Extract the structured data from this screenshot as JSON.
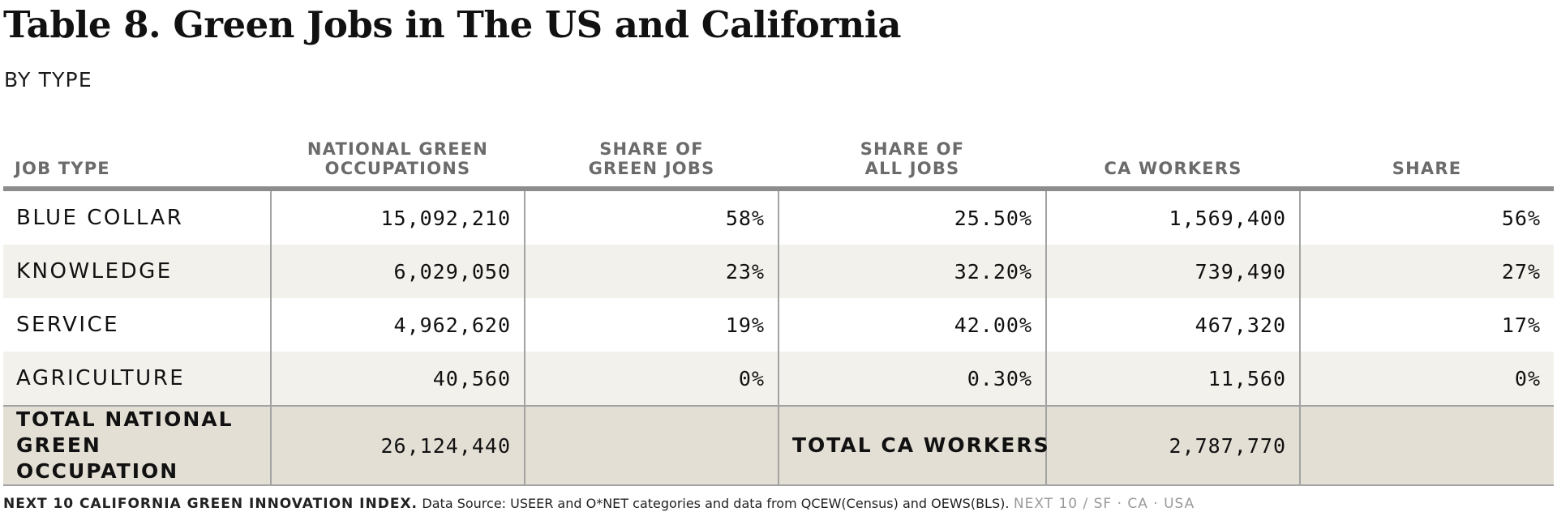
{
  "title": "Table 8. Green Jobs in The US and California",
  "subtitle": "BY TYPE",
  "table": {
    "headers": [
      [
        "JOB TYPE"
      ],
      [
        "NATIONAL GREEN",
        "OCCUPATIONS"
      ],
      [
        "SHARE OF",
        "GREEN JOBS"
      ],
      [
        "SHARE OF",
        "ALL JOBS"
      ],
      [
        "CA WORKERS"
      ],
      [
        "SHARE"
      ]
    ],
    "rows": [
      {
        "job_type": "BLUE COLLAR",
        "national": "15,092,210",
        "share_green": "58%",
        "share_all": "25.50%",
        "ca_workers": "1,569,400",
        "share": "56%"
      },
      {
        "job_type": "KNOWLEDGE",
        "national": "6,029,050",
        "share_green": "23%",
        "share_all": "32.20%",
        "ca_workers": "739,490",
        "share": "27%"
      },
      {
        "job_type": "SERVICE",
        "national": "4,962,620",
        "share_green": "19%",
        "share_all": "42.00%",
        "ca_workers": "467,320",
        "share": "17%"
      },
      {
        "job_type": "AGRICULTURE",
        "national": "40,560",
        "share_green": "0%",
        "share_all": "0.30%",
        "ca_workers": "11,560",
        "share": "0%"
      }
    ],
    "total": {
      "national_label_line1": "TOTAL NATIONAL",
      "national_label_line2": "GREEN OCCUPATION",
      "national_value": "26,124,440",
      "ca_label": "TOTAL CA WORKERS",
      "ca_value": "2,787,770"
    }
  },
  "footer": {
    "org": "NEXT 10 CALIFORNIA GREEN INNOVATION INDEX.",
    "source": "Data Source: USEER and O*NET categories and data from QCEW(Census) and OEWS(BLS).",
    "brand": "NEXT 10  /  SF · CA · USA"
  },
  "colors": {
    "header_text": "#6b6b6b",
    "header_rule": "#8c8c8c",
    "row_alt": "#f3f1ec",
    "total_row": "#e4dfd5",
    "brand_text": "#9a9a9a"
  }
}
